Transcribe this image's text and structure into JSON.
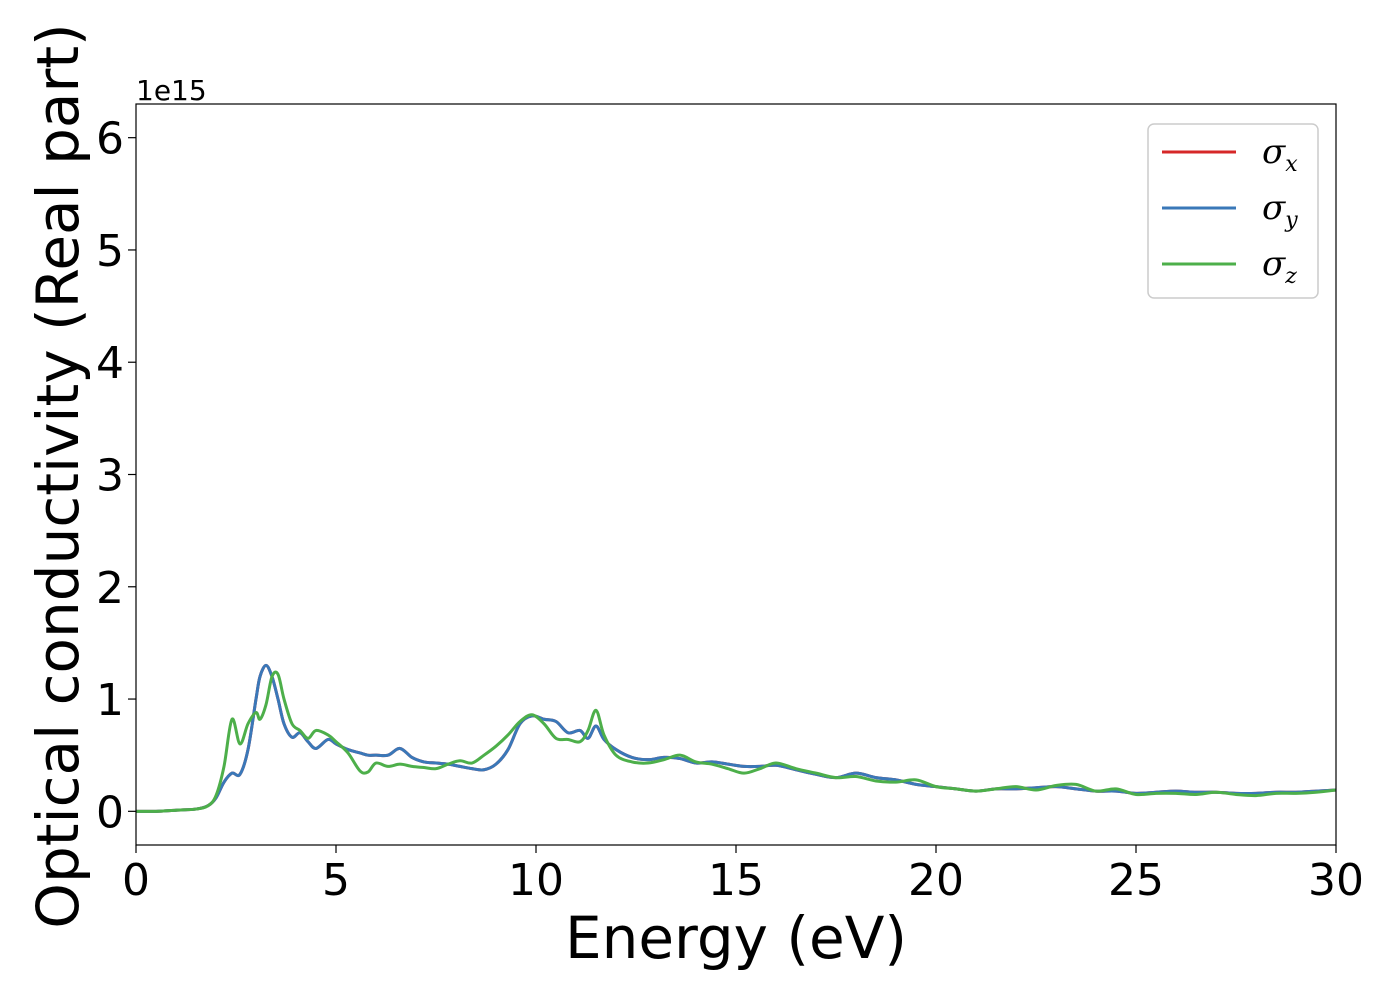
{
  "chart_data": {
    "type": "line",
    "title": "",
    "xlabel": "Energy (eV)",
    "ylabel": "Optical conductivity (Real part)",
    "y_offset_label": "1e15",
    "y_scale": 1000000000000000.0,
    "xlim": [
      0,
      30
    ],
    "ylim": [
      -0.3,
      6.3
    ],
    "xticks": [
      0,
      5,
      10,
      15,
      20,
      25,
      30
    ],
    "xtick_labels": [
      "0",
      "5",
      "10",
      "15",
      "20",
      "25",
      "30"
    ],
    "yticks": [
      0,
      1,
      2,
      3,
      4,
      5,
      6
    ],
    "ytick_labels": [
      "0",
      "1",
      "2",
      "3",
      "4",
      "5",
      "6"
    ],
    "grid": false,
    "legend_position": "top-right",
    "x": [
      0,
      0.5,
      1.0,
      1.5,
      1.8,
      2.0,
      2.2,
      2.4,
      2.6,
      2.8,
      3.0,
      3.1,
      3.25,
      3.4,
      3.55,
      3.7,
      3.9,
      4.1,
      4.3,
      4.5,
      4.8,
      5.0,
      5.3,
      5.6,
      5.8,
      6.0,
      6.3,
      6.6,
      6.9,
      7.2,
      7.5,
      7.8,
      8.1,
      8.4,
      8.7,
      9.0,
      9.3,
      9.6,
      9.9,
      10.2,
      10.5,
      10.8,
      11.1,
      11.3,
      11.5,
      11.7,
      12.0,
      12.4,
      12.8,
      13.2,
      13.6,
      14.0,
      14.4,
      14.8,
      15.2,
      15.6,
      16.0,
      16.5,
      17.0,
      17.5,
      18.0,
      18.5,
      19.0,
      19.5,
      20.0,
      20.5,
      21.0,
      21.5,
      22.0,
      22.5,
      23.0,
      23.5,
      24.0,
      24.5,
      25.0,
      25.5,
      26.0,
      26.5,
      27.0,
      27.5,
      28.0,
      28.5,
      29.0,
      29.5,
      30.0
    ],
    "series": [
      {
        "name": "σx",
        "label_base": "σ",
        "label_sub": "x",
        "color": "#d62728",
        "values": [
          0,
          0,
          0.01,
          0.02,
          0.05,
          0.12,
          0.26,
          0.34,
          0.33,
          0.55,
          1.0,
          1.2,
          1.3,
          1.2,
          1.0,
          0.78,
          0.66,
          0.7,
          0.62,
          0.56,
          0.64,
          0.6,
          0.55,
          0.52,
          0.5,
          0.5,
          0.5,
          0.56,
          0.48,
          0.44,
          0.43,
          0.42,
          0.4,
          0.38,
          0.37,
          0.42,
          0.55,
          0.78,
          0.85,
          0.82,
          0.8,
          0.7,
          0.72,
          0.65,
          0.76,
          0.64,
          0.55,
          0.48,
          0.46,
          0.48,
          0.47,
          0.43,
          0.44,
          0.42,
          0.4,
          0.4,
          0.41,
          0.37,
          0.33,
          0.3,
          0.34,
          0.3,
          0.28,
          0.24,
          0.22,
          0.2,
          0.18,
          0.2,
          0.2,
          0.21,
          0.22,
          0.2,
          0.18,
          0.18,
          0.16,
          0.17,
          0.18,
          0.17,
          0.17,
          0.16,
          0.16,
          0.17,
          0.17,
          0.18,
          0.19
        ]
      },
      {
        "name": "σy",
        "label_base": "σ",
        "label_sub": "y",
        "color": "#3a78b8",
        "values": [
          0,
          0,
          0.01,
          0.02,
          0.05,
          0.12,
          0.26,
          0.34,
          0.33,
          0.55,
          1.0,
          1.2,
          1.3,
          1.2,
          1.0,
          0.78,
          0.66,
          0.7,
          0.62,
          0.56,
          0.64,
          0.6,
          0.55,
          0.52,
          0.5,
          0.5,
          0.5,
          0.56,
          0.48,
          0.44,
          0.43,
          0.42,
          0.4,
          0.38,
          0.37,
          0.42,
          0.55,
          0.78,
          0.85,
          0.82,
          0.8,
          0.7,
          0.72,
          0.65,
          0.76,
          0.64,
          0.55,
          0.48,
          0.46,
          0.48,
          0.47,
          0.43,
          0.44,
          0.42,
          0.4,
          0.4,
          0.41,
          0.37,
          0.33,
          0.3,
          0.34,
          0.3,
          0.28,
          0.24,
          0.22,
          0.2,
          0.18,
          0.2,
          0.2,
          0.21,
          0.22,
          0.2,
          0.18,
          0.18,
          0.16,
          0.17,
          0.18,
          0.17,
          0.17,
          0.16,
          0.16,
          0.17,
          0.17,
          0.18,
          0.19
        ]
      },
      {
        "name": "σz",
        "label_base": "σ",
        "label_sub": "z",
        "color": "#4daf4a",
        "values": [
          0,
          0,
          0.01,
          0.02,
          0.05,
          0.14,
          0.4,
          0.82,
          0.6,
          0.78,
          0.88,
          0.82,
          0.95,
          1.2,
          1.22,
          1.0,
          0.78,
          0.72,
          0.65,
          0.72,
          0.68,
          0.62,
          0.52,
          0.36,
          0.35,
          0.43,
          0.4,
          0.42,
          0.4,
          0.39,
          0.38,
          0.42,
          0.45,
          0.43,
          0.5,
          0.58,
          0.68,
          0.8,
          0.86,
          0.78,
          0.65,
          0.64,
          0.62,
          0.72,
          0.9,
          0.68,
          0.5,
          0.44,
          0.43,
          0.46,
          0.5,
          0.44,
          0.42,
          0.38,
          0.34,
          0.38,
          0.43,
          0.38,
          0.34,
          0.3,
          0.31,
          0.27,
          0.26,
          0.28,
          0.22,
          0.2,
          0.18,
          0.2,
          0.22,
          0.19,
          0.23,
          0.24,
          0.18,
          0.2,
          0.15,
          0.16,
          0.16,
          0.15,
          0.17,
          0.15,
          0.14,
          0.16,
          0.16,
          0.17,
          0.19
        ]
      }
    ]
  }
}
